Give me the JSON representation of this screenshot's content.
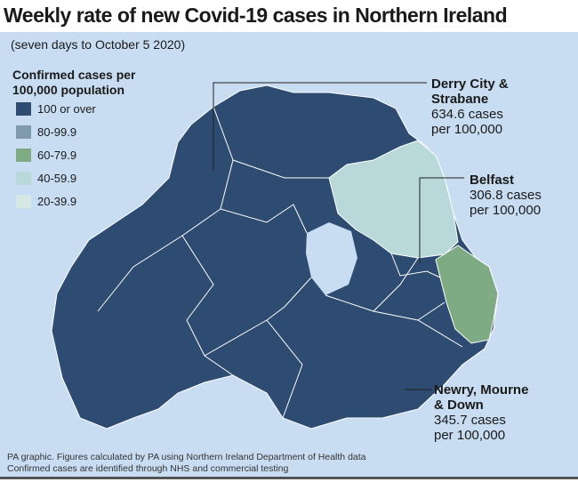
{
  "title": "Weekly rate of new Covid-19 cases in Northern Ireland",
  "subtitle": "(seven days to October 5 2020)",
  "legend": {
    "title_line1": "Confirmed cases per",
    "title_line2": "100,000 population",
    "items": [
      {
        "label": "100 or over",
        "color": "#2e4b72"
      },
      {
        "label": "80-99.9",
        "color": "#7f9aab"
      },
      {
        "label": "60-79.9",
        "color": "#7eaa84"
      },
      {
        "label": "40-59.9",
        "color": "#b8d8d9"
      },
      {
        "label": "20-39.9",
        "color": "#d5e8e4"
      }
    ]
  },
  "callouts": [
    {
      "name_line1": "Derry City &",
      "name_line2": "Strabane",
      "value_line1": "634.6 cases",
      "value_line2": "per 100,000"
    },
    {
      "name_line1": "Belfast",
      "name_line2": "",
      "value_line1": "306.8 cases",
      "value_line2": "per 100,000"
    },
    {
      "name_line1": "Newry, Mourne",
      "name_line2": "& Down",
      "value_line1": "345.7 cases",
      "value_line2": "per 100,000"
    }
  ],
  "footer": {
    "line1": "PA graphic. Figures calculated by PA using Northern Ireland Department of Health data",
    "line2": "Confirmed cases are identified through NHS and commercial testing"
  }
}
